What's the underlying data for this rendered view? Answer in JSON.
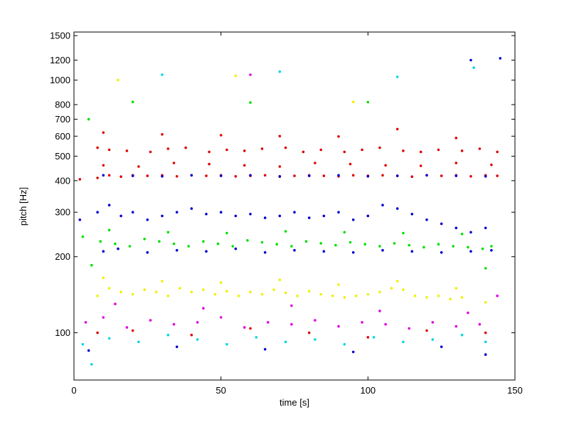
{
  "chart_data": {
    "type": "scatter",
    "title": "",
    "xlabel": "time [s]",
    "ylabel": "pitch [Hz]",
    "xlim": [
      0,
      150
    ],
    "ylim": [
      65,
      1550
    ],
    "y_scale": "log",
    "grid": false,
    "legend": "none",
    "x_ticks": [
      0,
      50,
      100,
      150
    ],
    "x_tick_labels": [
      "0",
      "50",
      "100",
      "150"
    ],
    "y_ticks": [
      100,
      200,
      300,
      400,
      500,
      600,
      700,
      800,
      1000,
      1200,
      1500
    ],
    "y_tick_labels": [
      "100",
      "200",
      "300",
      "400",
      "500",
      "600",
      "700",
      "800",
      "1000",
      "1200",
      "1500"
    ],
    "series": [
      {
        "color": "#e00000",
        "x": [
          2,
          8,
          12,
          16,
          20,
          25,
          30,
          35,
          40,
          45,
          50,
          55,
          60,
          65,
          70,
          75,
          80,
          85,
          90,
          95,
          100,
          105,
          110,
          115,
          120,
          125,
          130,
          135,
          140,
          144,
          10,
          30,
          50,
          70,
          90,
          110,
          130,
          8,
          12,
          18,
          26,
          32,
          38,
          46,
          52,
          58,
          64,
          72,
          78,
          84,
          92,
          98,
          104,
          112,
          118,
          124,
          132,
          138,
          144,
          10,
          22,
          34,
          46,
          58,
          70,
          82,
          94,
          106,
          118,
          130,
          142,
          8,
          20,
          40,
          60,
          80,
          100,
          120,
          140
        ],
        "y": [
          405,
          410,
          420,
          415,
          420,
          418,
          420,
          416,
          420,
          418,
          420,
          416,
          418,
          420,
          415,
          418,
          420,
          418,
          416,
          420,
          418,
          420,
          418,
          415,
          420,
          418,
          420,
          416,
          420,
          418,
          620,
          610,
          605,
          600,
          598,
          640,
          590,
          540,
          530,
          525,
          520,
          535,
          540,
          520,
          530,
          525,
          535,
          540,
          520,
          530,
          520,
          530,
          540,
          525,
          520,
          530,
          525,
          535,
          520,
          460,
          455,
          470,
          465,
          460,
          455,
          470,
          465,
          460,
          458,
          470,
          462,
          100,
          102,
          98,
          104,
          100,
          96,
          102,
          100
        ]
      },
      {
        "color": "#0000d0",
        "x": [
          2,
          8,
          12,
          16,
          20,
          25,
          30,
          35,
          40,
          45,
          50,
          55,
          60,
          65,
          70,
          75,
          80,
          85,
          90,
          95,
          100,
          105,
          110,
          115,
          120,
          125,
          130,
          135,
          140,
          10,
          15,
          25,
          35,
          45,
          55,
          65,
          75,
          85,
          95,
          105,
          115,
          125,
          135,
          142,
          10,
          20,
          30,
          40,
          50,
          60,
          70,
          80,
          90,
          100,
          110,
          120,
          130,
          140,
          5,
          35,
          65,
          95,
          125,
          140,
          135,
          145
        ],
        "y": [
          280,
          300,
          320,
          290,
          300,
          280,
          290,
          300,
          310,
          295,
          300,
          290,
          295,
          285,
          290,
          300,
          285,
          290,
          300,
          280,
          290,
          320,
          310,
          295,
          280,
          270,
          260,
          250,
          260,
          210,
          215,
          208,
          212,
          210,
          215,
          208,
          212,
          210,
          208,
          212,
          210,
          208,
          210,
          212,
          420,
          418,
          416,
          420,
          418,
          420,
          416,
          418,
          420,
          416,
          418,
          420,
          418,
          416,
          85,
          88,
          86,
          84,
          88,
          82,
          1200,
          1220
        ]
      },
      {
        "color": "#00e000",
        "x": [
          3,
          9,
          14,
          19,
          24,
          29,
          34,
          39,
          44,
          49,
          54,
          59,
          64,
          69,
          74,
          79,
          84,
          89,
          94,
          99,
          104,
          109,
          114,
          119,
          124,
          129,
          134,
          139,
          142,
          12,
          32,
          52,
          72,
          92,
          112,
          132,
          5,
          20,
          60,
          100,
          140,
          6
        ],
        "y": [
          240,
          230,
          225,
          220,
          235,
          230,
          225,
          220,
          230,
          225,
          220,
          232,
          228,
          224,
          220,
          230,
          226,
          222,
          228,
          224,
          220,
          226,
          222,
          218,
          224,
          220,
          218,
          215,
          220,
          255,
          250,
          248,
          252,
          250,
          248,
          246,
          700,
          820,
          815,
          818,
          180,
          185
        ]
      },
      {
        "color": "#f0f000",
        "x": [
          8,
          12,
          16,
          20,
          24,
          28,
          32,
          36,
          40,
          44,
          48,
          52,
          56,
          60,
          64,
          68,
          72,
          76,
          80,
          84,
          88,
          92,
          96,
          100,
          104,
          108,
          112,
          116,
          120,
          124,
          128,
          132,
          140,
          10,
          30,
          50,
          70,
          90,
          110,
          130,
          15,
          55,
          95
        ],
        "y": [
          140,
          150,
          145,
          142,
          148,
          145,
          140,
          150,
          145,
          148,
          142,
          146,
          140,
          145,
          142,
          148,
          144,
          140,
          146,
          142,
          140,
          138,
          140,
          142,
          145,
          150,
          148,
          140,
          138,
          140,
          136,
          138,
          132,
          165,
          160,
          158,
          162,
          155,
          160,
          150,
          1000,
          1040,
          820
        ]
      },
      {
        "color": "#e000e0",
        "x": [
          4,
          10,
          18,
          26,
          34,
          42,
          50,
          58,
          66,
          74,
          82,
          90,
          98,
          106,
          114,
          122,
          130,
          138,
          144,
          14,
          44,
          74,
          104,
          134,
          60
        ],
        "y": [
          110,
          115,
          105,
          112,
          108,
          110,
          115,
          105,
          110,
          108,
          112,
          106,
          110,
          108,
          104,
          110,
          106,
          108,
          140,
          130,
          125,
          128,
          122,
          120,
          1050
        ]
      },
      {
        "color": "#00d8e0",
        "x": [
          3,
          12,
          22,
          32,
          42,
          52,
          62,
          72,
          82,
          92,
          102,
          112,
          122,
          132,
          140,
          6,
          30,
          70,
          110,
          136
        ],
        "y": [
          90,
          95,
          92,
          98,
          94,
          90,
          96,
          92,
          94,
          90,
          96,
          92,
          94,
          98,
          92,
          75,
          1050,
          1080,
          1030,
          1120
        ]
      }
    ]
  }
}
